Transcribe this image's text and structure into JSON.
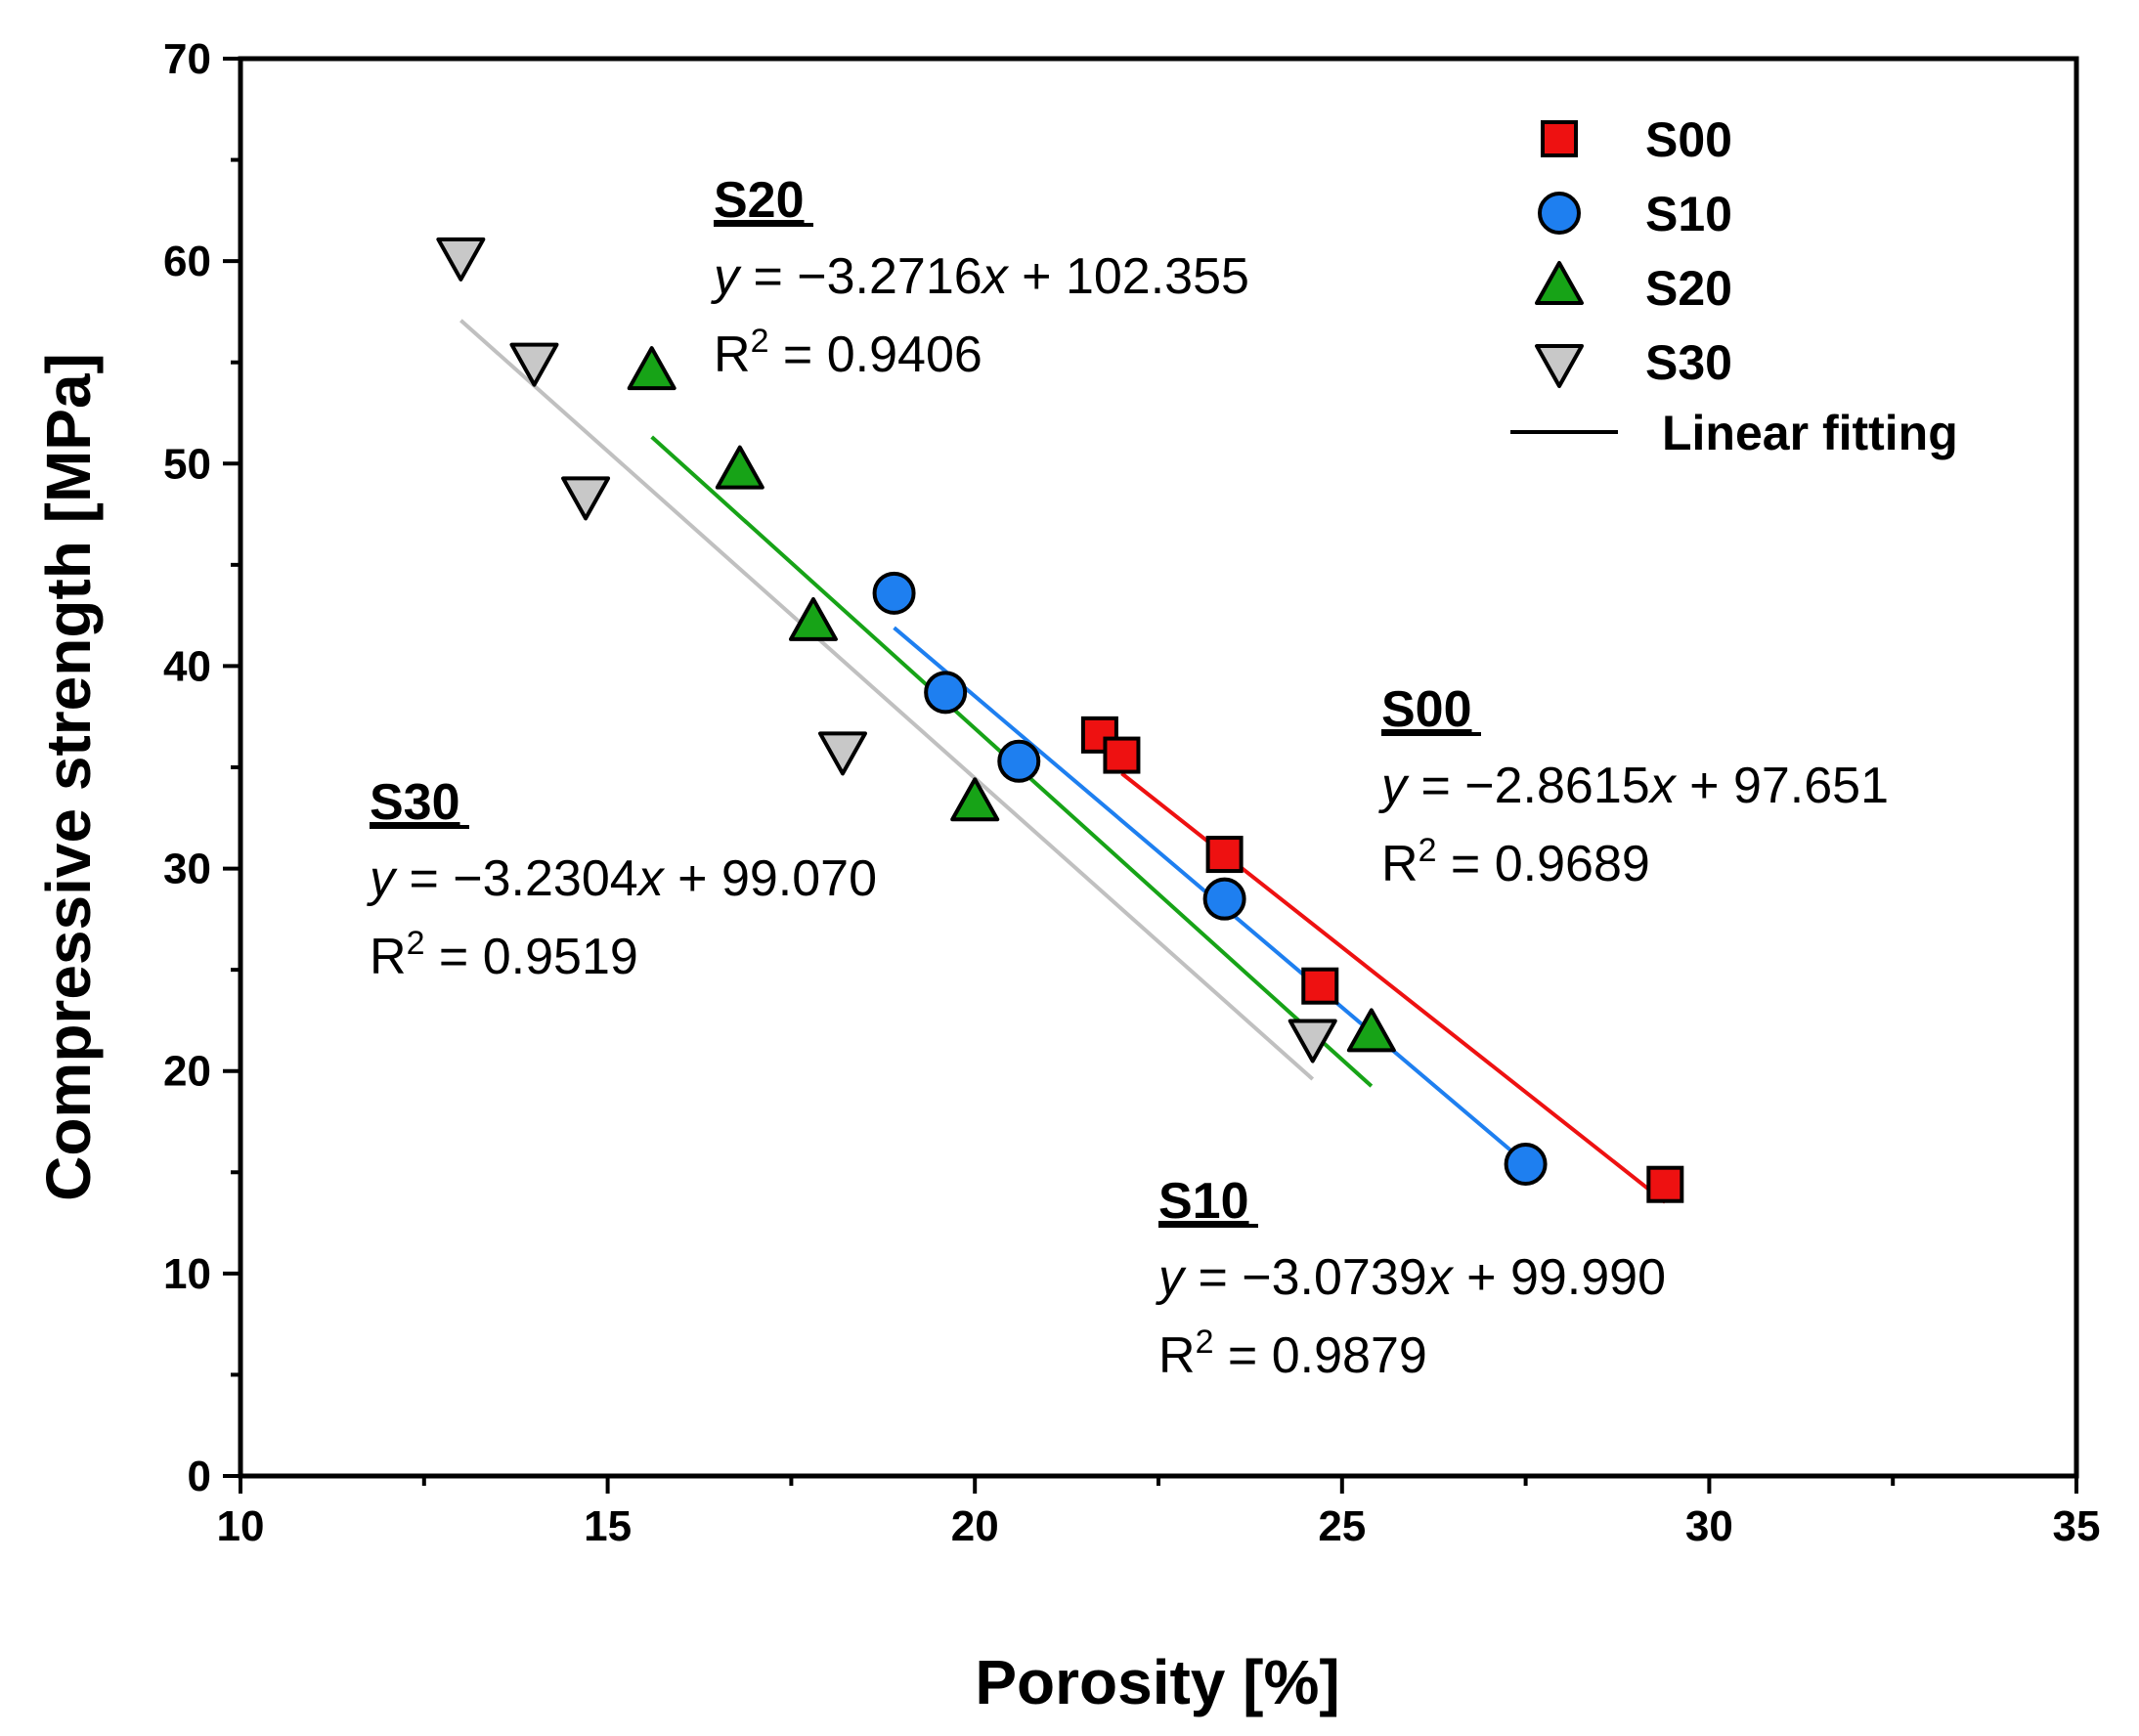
{
  "chart_data": {
    "type": "scatter",
    "xlabel": "Porosity [%]",
    "ylabel": "Compressive strength [MPa]",
    "xlim": [
      10,
      35
    ],
    "ylim": [
      0,
      70
    ],
    "xticks": [
      "10",
      "15",
      "20",
      "25",
      "30",
      "35"
    ],
    "yticks": [
      "0",
      "10",
      "20",
      "30",
      "40",
      "50",
      "60",
      "70"
    ],
    "grid": false,
    "legend_position": "top-right",
    "legend": {
      "series_labels": [
        "S00",
        "S10",
        "S20",
        "S30"
      ],
      "fit_label": "Linear fitting"
    },
    "series": [
      {
        "name": "S00",
        "marker": "square",
        "color": "#ee1111",
        "points": [
          [
            21.7,
            36.6
          ],
          [
            22.0,
            35.6
          ],
          [
            23.4,
            30.7
          ],
          [
            24.7,
            24.2
          ],
          [
            29.4,
            14.4
          ]
        ],
        "fit": {
          "x_range": [
            22.0,
            29.4
          ],
          "slope": -2.8615,
          "intercept": 97.651
        },
        "annotation": {
          "name": "S00",
          "eq_lhs": "y",
          "eq_rhs": " = −2.8615",
          "eq_var": "x",
          "eq_tail": " + 97.651",
          "r2_label": "R",
          "r2_exp": "2",
          "r2_value": " = 0.9689"
        }
      },
      {
        "name": "S10",
        "marker": "circle",
        "color": "#1e7ff0",
        "points": [
          [
            18.9,
            43.6
          ],
          [
            19.6,
            38.7
          ],
          [
            20.6,
            35.3
          ],
          [
            23.4,
            28.5
          ],
          [
            27.5,
            15.4
          ]
        ],
        "fit": {
          "x_range": [
            18.9,
            27.5
          ],
          "slope": -3.0739,
          "intercept": 99.99
        },
        "annotation": {
          "name": "S10",
          "eq_lhs": "y",
          "eq_rhs": " = −3.0739",
          "eq_var": "x",
          "eq_tail": " + 99.990",
          "r2_label": "R",
          "r2_exp": "2",
          "r2_value": " = 0.9879"
        }
      },
      {
        "name": "S20",
        "marker": "triangle-up",
        "color": "#17a317",
        "points": [
          [
            15.6,
            54.5
          ],
          [
            16.8,
            49.6
          ],
          [
            17.8,
            42.1
          ],
          [
            20.0,
            33.2
          ],
          [
            25.4,
            21.8
          ]
        ],
        "fit": {
          "x_range": [
            15.6,
            25.4
          ],
          "slope": -3.2716,
          "intercept": 102.355
        },
        "annotation": {
          "name": "S20",
          "eq_lhs": "y",
          "eq_rhs": " = −3.2716",
          "eq_var": "x",
          "eq_tail": " + 102.355",
          "r2_label": "R",
          "r2_exp": "2",
          "r2_value": " = 0.9406"
        }
      },
      {
        "name": "S30",
        "marker": "triangle-down",
        "color": "#c8c8c8",
        "points": [
          [
            13.0,
            60.3
          ],
          [
            14.0,
            55.1
          ],
          [
            14.7,
            48.5
          ],
          [
            18.2,
            35.9
          ],
          [
            24.6,
            21.7
          ]
        ],
        "fit": {
          "x_range": [
            13.0,
            24.6
          ],
          "slope": -3.2304,
          "intercept": 99.07
        },
        "annotation": {
          "name": "S30",
          "eq_lhs": "y",
          "eq_rhs": " = −3.2304",
          "eq_var": "x",
          "eq_tail": " + 99.070",
          "r2_label": "R",
          "r2_exp": "2",
          "r2_value": " = 0.9519"
        }
      }
    ],
    "fit_colors": {
      "S00": "#ee1111",
      "S10": "#1e7ff0",
      "S20": "#17a317",
      "S30": "#c0c0c0"
    }
  }
}
